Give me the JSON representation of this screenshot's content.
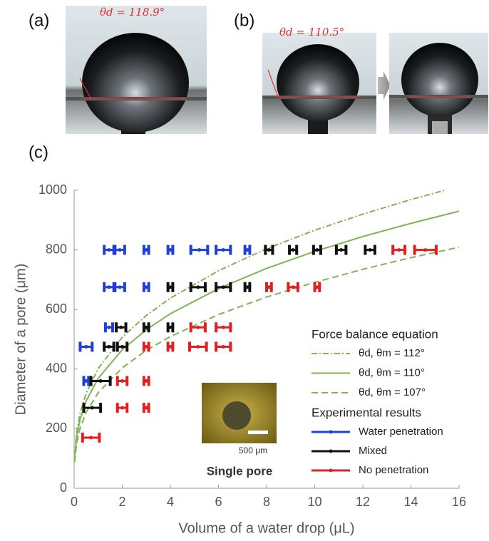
{
  "panels": {
    "a": {
      "label": "(a)",
      "angle": "θd = 118.9°"
    },
    "b": {
      "label": "(b)",
      "angle": "θd = 110.5°"
    },
    "c": {
      "label": "(c)"
    }
  },
  "chart_data": {
    "type": "scatter",
    "x_label": "Volume of a water drop (μL)",
    "y_label": "Diameter of a pore (μm)",
    "xlim": [
      0,
      16
    ],
    "xticks": [
      0,
      2,
      4,
      6,
      8,
      10,
      12,
      14,
      16
    ],
    "ylim": [
      0,
      1000
    ],
    "yticks": [
      0,
      200,
      400,
      600,
      800,
      1000
    ],
    "legend_groups": [
      "Force balance equation",
      "Experimental results"
    ],
    "inset": {
      "scale_label": "500 μm",
      "caption": "Single pore"
    },
    "series": [
      {
        "name": "θd, θm = 112°",
        "type": "line",
        "dash": "dashdot",
        "color": "#7fb356",
        "x": [
          0.02,
          0.1,
          0.25,
          0.5,
          1,
          2,
          3,
          4,
          6,
          8,
          10,
          12,
          14,
          15.4
        ],
        "values": [
          109,
          187,
          253,
          319,
          402,
          507,
          580,
          638,
          730,
          804,
          866,
          920,
          969,
          1000
        ]
      },
      {
        "name": "θd, θm = 110°",
        "type": "line",
        "dash": "solid",
        "color": "#7fb356",
        "x": [
          0.02,
          0.1,
          0.25,
          0.5,
          1,
          2,
          3,
          4,
          6,
          8,
          10,
          12,
          14,
          16
        ],
        "values": [
          100,
          171,
          232,
          293,
          369,
          465,
          532,
          586,
          670,
          738,
          795,
          845,
          889,
          930
        ]
      },
      {
        "name": "θd, θm = 107°",
        "type": "line",
        "dash": "dashed",
        "color": "#7fb356",
        "x": [
          0.02,
          0.1,
          0.25,
          0.5,
          1,
          2,
          3,
          4,
          6,
          8,
          10,
          12,
          14,
          16
        ],
        "values": [
          87,
          149,
          202,
          255,
          321,
          404,
          463,
          509,
          583,
          642,
          691,
          735,
          774,
          809
        ]
      },
      {
        "name": "Water penetration",
        "type": "errorbar",
        "color": "#1f3fd6",
        "x": [
          1.45,
          1.9,
          3.0,
          4.0,
          5.2,
          6.2,
          7.2,
          1.45,
          1.9,
          3.0,
          1.45,
          0.5,
          0.5
        ],
        "xerr": [
          0.2,
          0.2,
          0.1,
          0.1,
          0.35,
          0.3,
          0.1,
          0.2,
          0.2,
          0.1,
          0.15,
          0.25,
          0.1
        ],
        "values": [
          800,
          800,
          800,
          800,
          800,
          800,
          800,
          675,
          675,
          675,
          540,
          475,
          360
        ]
      },
      {
        "name": "Mixed",
        "type": "errorbar",
        "color": "#111111",
        "x": [
          8.1,
          9.1,
          10.1,
          11.1,
          12.3,
          4.0,
          5.15,
          6.2,
          7.2,
          1.95,
          3.0,
          4.0,
          1.45,
          2.0,
          1.1,
          0.75
        ],
        "xerr": [
          0.15,
          0.15,
          0.15,
          0.2,
          0.2,
          0.1,
          0.3,
          0.3,
          0.1,
          0.2,
          0.1,
          0.1,
          0.2,
          0.2,
          0.4,
          0.35
        ],
        "values": [
          800,
          800,
          800,
          800,
          800,
          675,
          675,
          675,
          675,
          540,
          540,
          540,
          475,
          475,
          360,
          270
        ]
      },
      {
        "name": "No penetration",
        "type": "errorbar",
        "color": "#e02020",
        "x": [
          13.5,
          14.6,
          8.1,
          9.1,
          10.1,
          5.15,
          6.2,
          3.0,
          4.0,
          5.15,
          6.2,
          2.0,
          3.0,
          2.0,
          3.0,
          0.7
        ],
        "xerr": [
          0.25,
          0.45,
          0.1,
          0.2,
          0.1,
          0.3,
          0.3,
          0.1,
          0.1,
          0.35,
          0.3,
          0.2,
          0.1,
          0.2,
          0.1,
          0.35
        ],
        "values": [
          800,
          800,
          675,
          675,
          675,
          540,
          540,
          475,
          475,
          475,
          475,
          360,
          360,
          270,
          270,
          170
        ]
      }
    ]
  }
}
